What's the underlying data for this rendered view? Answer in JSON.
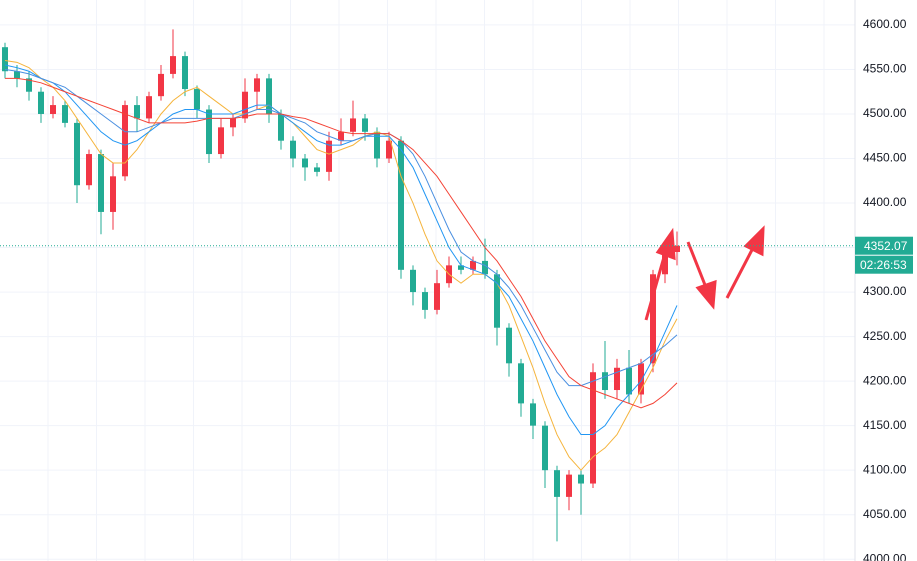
{
  "chart_data": {
    "type": "candlestick",
    "open": [
      4575,
      4548,
      4540,
      4525,
      4500,
      4510,
      4490,
      4420,
      4455,
      4390,
      4430,
      4510,
      4495,
      4520,
      4545,
      4565,
      4528,
      4505,
      4455,
      4485,
      4495,
      4525,
      4540,
      4500,
      4470,
      4450,
      4440,
      4435,
      4470,
      4480,
      4495,
      4480,
      4450,
      4470,
      4325,
      4300,
      4280,
      4310,
      4330,
      4325,
      4335,
      4320,
      4260,
      4220,
      4175,
      4150,
      4100,
      4070,
      4095,
      4085,
      4210,
      4190,
      4215,
      4185,
      4220,
      4320,
      4345
    ],
    "high": [
      4580,
      4555,
      4548,
      4530,
      4520,
      4515,
      4495,
      4460,
      4460,
      4445,
      4515,
      4520,
      4525,
      4555,
      4595,
      4570,
      4532,
      4510,
      4495,
      4500,
      4540,
      4545,
      4545,
      4505,
      4475,
      4455,
      4445,
      4480,
      4495,
      4515,
      4500,
      4485,
      4480,
      4475,
      4330,
      4305,
      4325,
      4340,
      4340,
      4340,
      4360,
      4325,
      4265,
      4225,
      4180,
      4155,
      4105,
      4100,
      4100,
      4220,
      4245,
      4225,
      4235,
      4225,
      4325,
      4350,
      4368
    ],
    "low": [
      4540,
      4530,
      4515,
      4490,
      4495,
      4485,
      4400,
      4415,
      4365,
      4370,
      4425,
      4480,
      4490,
      4515,
      4540,
      4520,
      4495,
      4445,
      4450,
      4475,
      4490,
      4505,
      4490,
      4460,
      4440,
      4425,
      4430,
      4425,
      4465,
      4475,
      4470,
      4440,
      4445,
      4315,
      4285,
      4270,
      4275,
      4305,
      4320,
      4320,
      4315,
      4240,
      4205,
      4160,
      4135,
      4080,
      4020,
      4055,
      4050,
      4080,
      4180,
      4180,
      4175,
      4175,
      4210,
      4310,
      4330
    ],
    "close": [
      4548,
      4540,
      4525,
      4500,
      4510,
      4490,
      4420,
      4455,
      4390,
      4430,
      4510,
      4495,
      4520,
      4545,
      4565,
      4528,
      4505,
      4455,
      4485,
      4495,
      4525,
      4540,
      4500,
      4470,
      4450,
      4440,
      4435,
      4470,
      4480,
      4495,
      4480,
      4450,
      4470,
      4325,
      4300,
      4280,
      4310,
      4330,
      4325,
      4335,
      4320,
      4260,
      4220,
      4175,
      4150,
      4100,
      4070,
      4095,
      4085,
      4210,
      4190,
      4215,
      4185,
      4220,
      4320,
      4345,
      4352.07
    ],
    "up_color": "#f23645",
    "down_color": "#22ab94",
    "series": [
      {
        "color": "#f5b43c",
        "values": [
          4560,
          4558,
          4552,
          4540,
          4530,
          4515,
          4495,
          4475,
          4455,
          4445,
          4445,
          4460,
          4480,
          4500,
          4515,
          4525,
          4530,
          4520,
          4510,
          4500,
          4500,
          4505,
          4510,
          4500,
          4490,
          4475,
          4460,
          4455,
          4460,
          4465,
          4475,
          4480,
          4475,
          4430,
          4400,
          4365,
          4335,
          4320,
          4310,
          4320,
          4320,
          4310,
          4285,
          4250,
          4215,
          4175,
          4140,
          4115,
          4100,
          4115,
          4125,
          4140,
          4165,
          4190,
          4215,
          4245,
          4270
        ]
      },
      {
        "color": "#2196f3",
        "values": [
          4555,
          4552,
          4548,
          4540,
          4535,
          4525,
          4510,
          4495,
          4480,
          4470,
          4465,
          4470,
          4480,
          4490,
          4500,
          4505,
          4505,
          4500,
          4500,
          4500,
          4505,
          4510,
          4510,
          4500,
          4490,
          4480,
          4470,
          4465,
          4465,
          4470,
          4475,
          4475,
          4475,
          4460,
          4440,
          4410,
          4380,
          4350,
          4330,
          4325,
          4320,
          4310,
          4295,
          4270,
          4245,
          4215,
          4185,
          4160,
          4140,
          4140,
          4150,
          4170,
          4185,
          4200,
          4225,
          4255,
          4285
        ]
      },
      {
        "color": "#4a8fe0",
        "values": [
          4550,
          4548,
          4545,
          4540,
          4535,
          4530,
          4520,
          4510,
          4500,
          4490,
          4480,
          4480,
          4485,
          4490,
          4495,
          4495,
          4495,
          4495,
          4495,
          4495,
          4500,
          4505,
          4505,
          4500,
          4495,
          4490,
          4480,
          4475,
          4470,
          4470,
          4475,
          4478,
          4478,
          4470,
          4455,
          4430,
          4400,
          4370,
          4345,
          4335,
          4330,
          4320,
          4305,
          4285,
          4260,
          4235,
          4210,
          4195,
          4195,
          4200,
          4205,
          4210,
          4215,
          4220,
          4230,
          4240,
          4252
        ]
      },
      {
        "color": "#f44336",
        "values": [
          4540,
          4540,
          4538,
          4535,
          4530,
          4525,
          4520,
          4515,
          4510,
          4505,
          4500,
          4495,
          4490,
          4490,
          4490,
          4490,
          4492,
          4495,
          4495,
          4495,
          4497,
          4500,
          4500,
          4500,
          4497,
          4495,
          4490,
          4485,
          4480,
          4478,
          4478,
          4478,
          4478,
          4470,
          4460,
          4445,
          4430,
          4410,
          4390,
          4370,
          4350,
          4335,
          4315,
          4295,
          4270,
          4245,
          4225,
          4205,
          4195,
          4190,
          4185,
          4180,
          4175,
          4170,
          4175,
          4185,
          4198
        ]
      }
    ],
    "ylim": [
      3998,
      4628
    ],
    "yticks": [
      {
        "value": 4000,
        "label": "4000.00"
      },
      {
        "value": 4050,
        "label": "4050.00"
      },
      {
        "value": 4100,
        "label": "4100.00"
      },
      {
        "value": 4150,
        "label": "4150.00"
      },
      {
        "value": 4200,
        "label": "4200.00"
      },
      {
        "value": 4250,
        "label": "4250.00"
      },
      {
        "value": 4300,
        "label": "4300.00"
      },
      {
        "value": 4350,
        "label": "4350.00"
      },
      {
        "value": 4400,
        "label": "4400.00"
      },
      {
        "value": 4450,
        "label": "4450.00"
      },
      {
        "value": 4500,
        "label": "4500.00"
      },
      {
        "value": 4550,
        "label": "4550.00"
      },
      {
        "value": 4600,
        "label": "4600.00"
      }
    ],
    "grid": true,
    "last_price": 4352.07,
    "price_color": "#22ab94",
    "countdown": "02:26:53"
  }
}
